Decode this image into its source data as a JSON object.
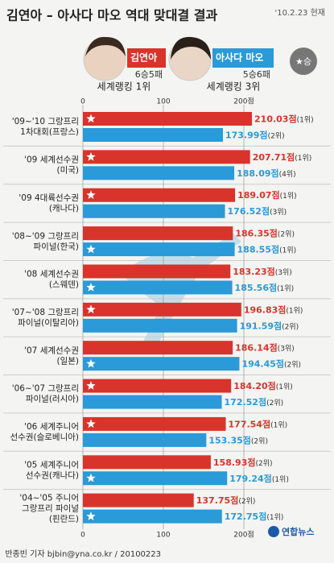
{
  "chart_data": {
    "type": "bar",
    "orientation": "horizontal",
    "title": "김연아 – 아사다 마오 역대 맞대결 결과",
    "date": "'10.2.23 현재",
    "legend_note": "★승",
    "categories": [
      [
        "'09~'10 그랑프리",
        "1차대회(프랑스)"
      ],
      [
        "'09 세계선수권",
        "(미국)"
      ],
      [
        "'09 4대륙선수권",
        "(캐나다)"
      ],
      [
        "'08~'09 그랑프리",
        "파이널(한국)"
      ],
      [
        "'08 세계선수권",
        "(스웨덴)"
      ],
      [
        "'07~'08 그랑프리",
        "파이널(이탈리아)"
      ],
      [
        "'07 세계선수권",
        "(일본)"
      ],
      [
        "'06~'07 그랑프리",
        "파이널(러시아)"
      ],
      [
        "'06 세계주니어",
        "선수권(슬로베니아)"
      ],
      [
        "'05 세계주니어",
        "선수권(캐나다)"
      ],
      [
        "'04~'05 주니어",
        "그랑프리 파이널",
        "(핀란드)"
      ]
    ],
    "series": [
      {
        "name": "김연아",
        "record": "6승5패",
        "ranking": "세계랭킹 1위",
        "color": "#d8342c",
        "values": [
          210.03,
          207.71,
          189.07,
          186.35,
          183.23,
          196.83,
          186.14,
          184.2,
          177.54,
          158.93,
          137.75
        ],
        "value_labels": [
          "210.03점",
          "207.71점",
          "189.07점",
          "186.35점",
          "183.23점",
          "196.83점",
          "186.14점",
          "184.20점",
          "177.54점",
          "158.93점",
          "137.75점"
        ],
        "ranks": [
          "(1위)",
          "(1위)",
          "(1위)",
          "(2위)",
          "(3위)",
          "(1위)",
          "(3위)",
          "(1위)",
          "(1위)",
          "(2위)",
          "(2위)"
        ]
      },
      {
        "name": "아사다 마오",
        "record": "5승6패",
        "ranking": "세계랭킹 3위",
        "color": "#2a9ad8",
        "values": [
          173.99,
          188.09,
          176.52,
          188.55,
          185.56,
          191.59,
          194.45,
          172.52,
          153.35,
          179.24,
          172.75
        ],
        "value_labels": [
          "173.99점",
          "188.09점",
          "176.52점",
          "188.55점",
          "185.56점",
          "191.59점",
          "194.45점",
          "172.52점",
          "153.35점",
          "179.24점",
          "172.75점"
        ],
        "ranks": [
          "(2위)",
          "(4위)",
          "(3위)",
          "(1위)",
          "(1위)",
          "(2위)",
          "(2위)",
          "(2위)",
          "(2위)",
          "(1위)",
          "(1위)"
        ]
      }
    ],
    "xlim": [
      0,
      300
    ],
    "xticks": [
      0,
      100,
      {
        "value": 200,
        "label": "200점"
      }
    ],
    "grid": true,
    "credit": "반종빈 기자 bjbin@yna.co.kr / 20100223",
    "source": "연합뉴스"
  }
}
